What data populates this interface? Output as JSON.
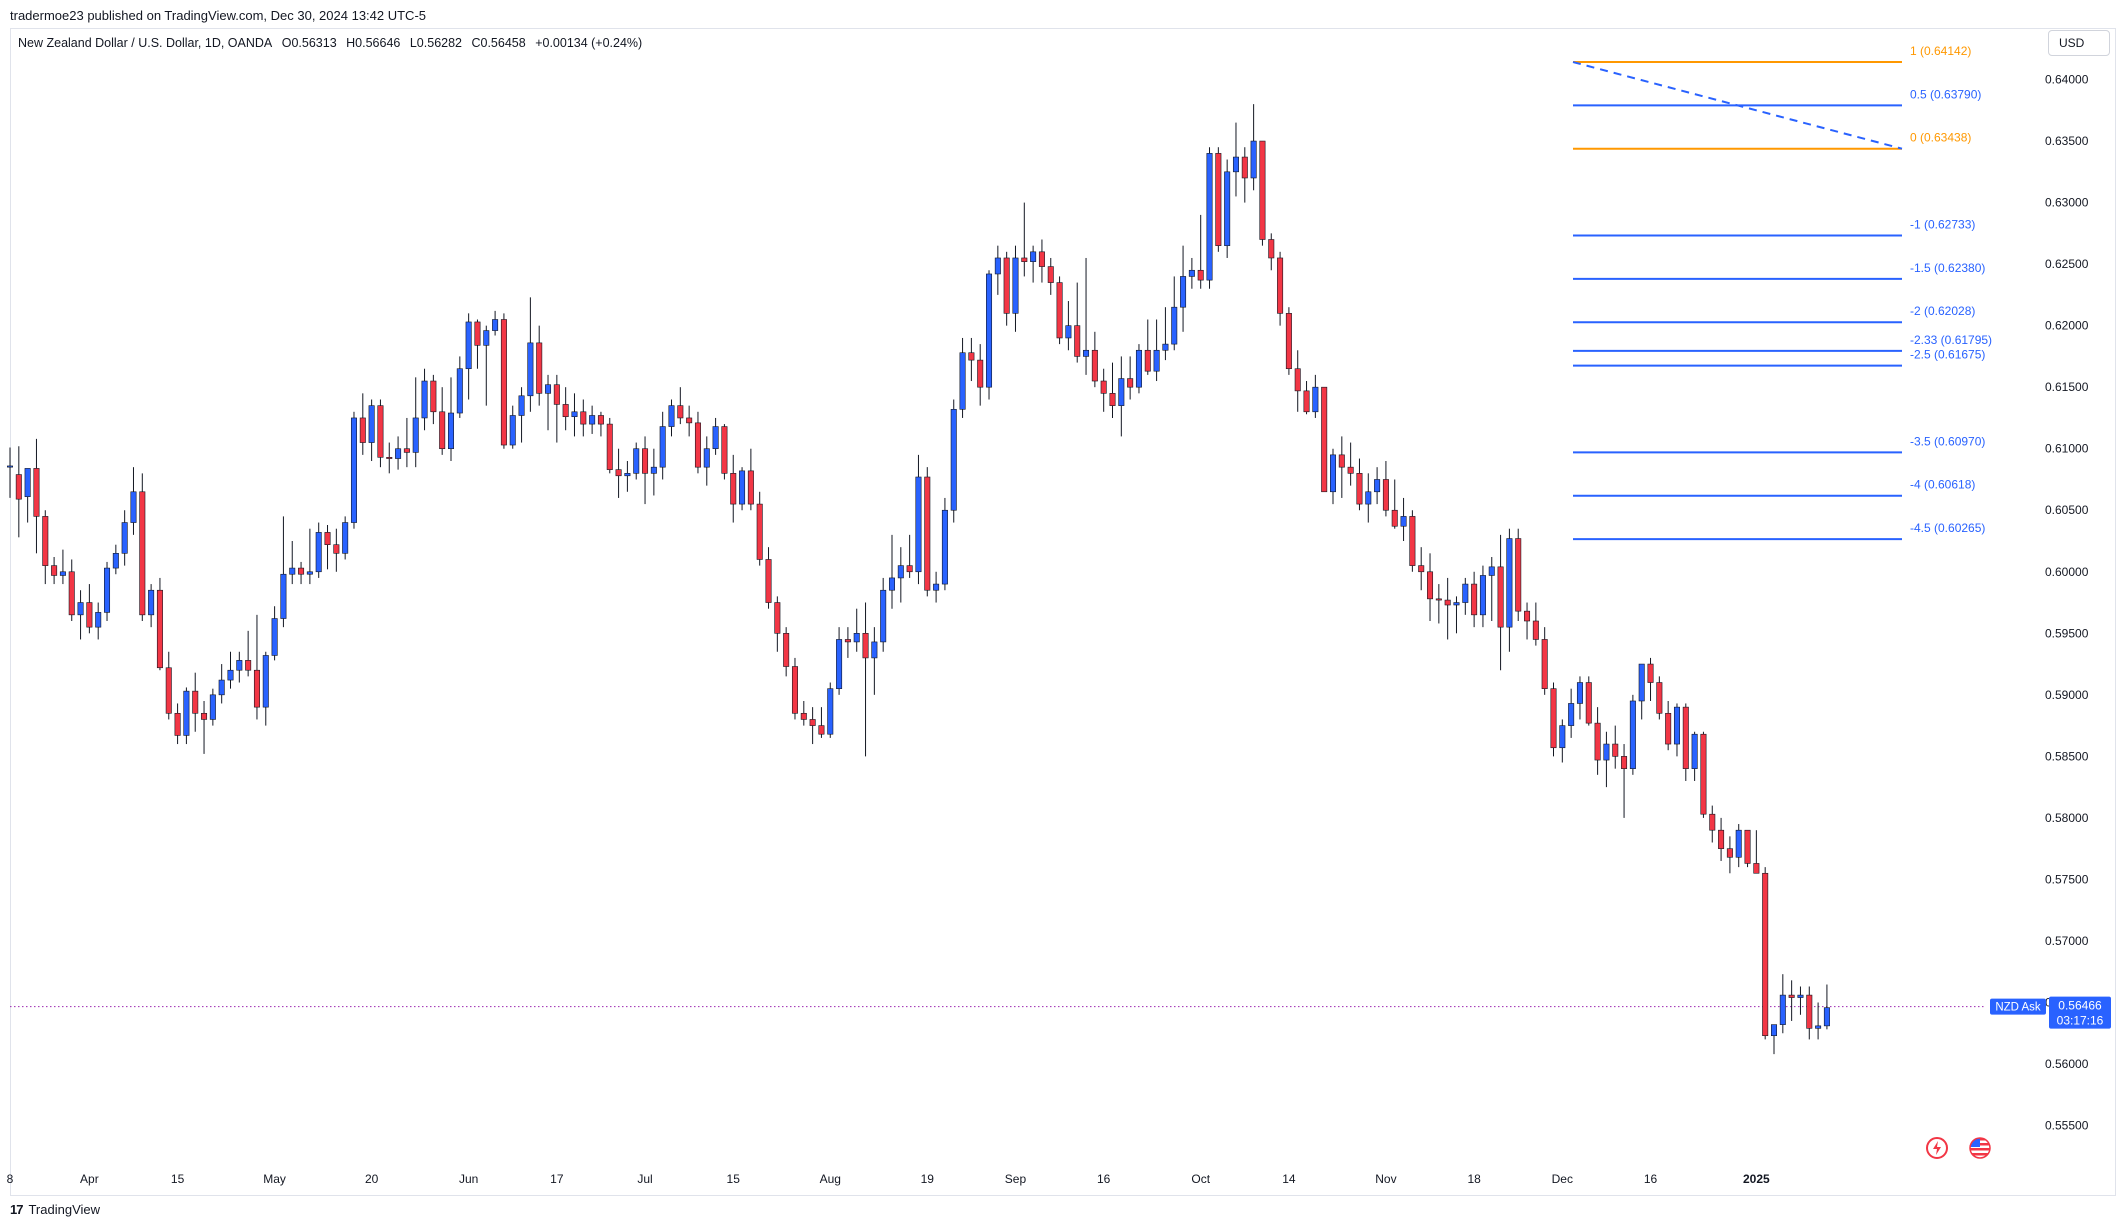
{
  "publish_line": "tradermoe23 published on TradingView.com, Dec 30, 2024 13:42 UTC-5",
  "symbol": {
    "name": "New Zealand Dollar / U.S. Dollar, 1D, OANDA",
    "open": "O0.56313",
    "high": "H0.56646",
    "low": "L0.56282",
    "close": "C0.56458",
    "change": "+0.00134 (+0.24%)"
  },
  "currency_button": "USD",
  "footer": {
    "brand": "TradingView",
    "logo_text": "17"
  },
  "price_label": {
    "name": "NZD Ask",
    "price": "0.56466",
    "countdown": "03:17:16"
  },
  "colors": {
    "up": "#2962ff",
    "down": "#f23645",
    "fib_orange": "#ff9800",
    "fib_blue": "#2962ff",
    "axis_text": "#131722"
  },
  "icons": [
    "lightning-icon",
    "us-flag-icon"
  ],
  "chart_data": {
    "type": "candlestick",
    "interval": "1D",
    "y_axis_side": "right",
    "ylim": [
      0.5522,
      0.645
    ],
    "y_ticks": [
      "0.64000",
      "0.63500",
      "0.63000",
      "0.62500",
      "0.62000",
      "0.61500",
      "0.61000",
      "0.60500",
      "0.60000",
      "0.59500",
      "0.59000",
      "0.58500",
      "0.58000",
      "0.57500",
      "0.57000",
      "0.56500",
      "0.56000",
      "0.55500"
    ],
    "x_tick_labels": [
      "8",
      "Apr",
      "15",
      "May",
      "20",
      "Jun",
      "17",
      "Jul",
      "15",
      "Aug",
      "19",
      "Sep",
      "16",
      "Oct",
      "14",
      "Nov",
      "18",
      "Dec",
      "16",
      "2025"
    ],
    "x_tick_bars": [
      0,
      9,
      19,
      30,
      41,
      52,
      62,
      72,
      82,
      93,
      104,
      114,
      124,
      135,
      145,
      156,
      166,
      176,
      186,
      198
    ],
    "candles": [
      [
        0.6086,
        0.6101,
        0.606,
        0.6086
      ],
      [
        0.6079,
        0.6102,
        0.6028,
        0.6059
      ],
      [
        0.6061,
        0.6083,
        0.604,
        0.6084
      ],
      [
        0.6084,
        0.6108,
        0.6015,
        0.6045
      ],
      [
        0.6045,
        0.605,
        0.599,
        0.6005
      ],
      [
        0.6005,
        0.6012,
        0.599,
        0.5997
      ],
      [
        0.5997,
        0.6018,
        0.599,
        0.6
      ],
      [
        0.6,
        0.601,
        0.596,
        0.5965
      ],
      [
        0.5965,
        0.5985,
        0.5945,
        0.5975
      ],
      [
        0.5975,
        0.599,
        0.595,
        0.5955
      ],
      [
        0.5955,
        0.5975,
        0.5945,
        0.5967
      ],
      [
        0.5967,
        0.6008,
        0.596,
        0.6003
      ],
      [
        0.6003,
        0.6022,
        0.5998,
        0.6015
      ],
      [
        0.6015,
        0.605,
        0.6005,
        0.604
      ],
      [
        0.604,
        0.6085,
        0.603,
        0.6065
      ],
      [
        0.6065,
        0.608,
        0.596,
        0.5965
      ],
      [
        0.5965,
        0.599,
        0.5955,
        0.5985
      ],
      [
        0.5985,
        0.5995,
        0.592,
        0.5922
      ],
      [
        0.5922,
        0.5935,
        0.588,
        0.5885
      ],
      [
        0.5885,
        0.5893,
        0.586,
        0.5867
      ],
      [
        0.5867,
        0.5906,
        0.586,
        0.5903
      ],
      [
        0.5903,
        0.5918,
        0.587,
        0.5885
      ],
      [
        0.5885,
        0.5895,
        0.5852,
        0.588
      ],
      [
        0.588,
        0.5905,
        0.5875,
        0.59
      ],
      [
        0.59,
        0.5925,
        0.5893,
        0.5912
      ],
      [
        0.5912,
        0.5935,
        0.5905,
        0.592
      ],
      [
        0.592,
        0.5935,
        0.591,
        0.5928
      ],
      [
        0.5928,
        0.5952,
        0.5915,
        0.592
      ],
      [
        0.592,
        0.5965,
        0.588,
        0.589
      ],
      [
        0.589,
        0.5935,
        0.5875,
        0.5932
      ],
      [
        0.5932,
        0.5972,
        0.5928,
        0.5962
      ],
      [
        0.5962,
        0.6045,
        0.5955,
        0.5998
      ],
      [
        0.5998,
        0.6025,
        0.599,
        0.6003
      ],
      [
        0.6003,
        0.6008,
        0.599,
        0.5998
      ],
      [
        0.5998,
        0.6035,
        0.599,
        0.6
      ],
      [
        0.6,
        0.604,
        0.5995,
        0.6032
      ],
      [
        0.6032,
        0.6038,
        0.6002,
        0.6022
      ],
      [
        0.6022,
        0.6035,
        0.6,
        0.6015
      ],
      [
        0.6015,
        0.6045,
        0.601,
        0.604
      ],
      [
        0.604,
        0.613,
        0.6035,
        0.6125
      ],
      [
        0.6125,
        0.6145,
        0.6095,
        0.6105
      ],
      [
        0.6105,
        0.614,
        0.609,
        0.6135
      ],
      [
        0.6135,
        0.614,
        0.6085,
        0.6093
      ],
      [
        0.6093,
        0.6105,
        0.608,
        0.6092
      ],
      [
        0.6092,
        0.611,
        0.6083,
        0.61
      ],
      [
        0.61,
        0.6125,
        0.6085,
        0.6097
      ],
      [
        0.6097,
        0.6158,
        0.6085,
        0.6125
      ],
      [
        0.6125,
        0.6165,
        0.6115,
        0.6155
      ],
      [
        0.6155,
        0.616,
        0.612,
        0.613
      ],
      [
        0.613,
        0.615,
        0.6095,
        0.61
      ],
      [
        0.61,
        0.6158,
        0.609,
        0.6129
      ],
      [
        0.6129,
        0.6175,
        0.6125,
        0.6165
      ],
      [
        0.6165,
        0.621,
        0.614,
        0.6203
      ],
      [
        0.6203,
        0.6205,
        0.6165,
        0.6184
      ],
      [
        0.6184,
        0.62,
        0.6135,
        0.6196
      ],
      [
        0.6196,
        0.6212,
        0.6192,
        0.6205
      ],
      [
        0.6205,
        0.621,
        0.61,
        0.6103
      ],
      [
        0.6103,
        0.6135,
        0.61,
        0.6127
      ],
      [
        0.6127,
        0.615,
        0.6105,
        0.6143
      ],
      [
        0.6143,
        0.6223,
        0.613,
        0.6186
      ],
      [
        0.6186,
        0.62,
        0.6135,
        0.6145
      ],
      [
        0.6145,
        0.616,
        0.6115,
        0.6152
      ],
      [
        0.6152,
        0.616,
        0.6105,
        0.6136
      ],
      [
        0.6136,
        0.615,
        0.6115,
        0.6126
      ],
      [
        0.6126,
        0.6145,
        0.611,
        0.613
      ],
      [
        0.613,
        0.614,
        0.611,
        0.612
      ],
      [
        0.612,
        0.6135,
        0.6112,
        0.6127
      ],
      [
        0.6127,
        0.613,
        0.611,
        0.612
      ],
      [
        0.612,
        0.6125,
        0.608,
        0.6083
      ],
      [
        0.6083,
        0.61,
        0.606,
        0.6078
      ],
      [
        0.6078,
        0.609,
        0.6065,
        0.608
      ],
      [
        0.608,
        0.6105,
        0.6075,
        0.61
      ],
      [
        0.61,
        0.611,
        0.6055,
        0.608
      ],
      [
        0.608,
        0.61,
        0.6062,
        0.6085
      ],
      [
        0.6085,
        0.613,
        0.6075,
        0.6118
      ],
      [
        0.6118,
        0.614,
        0.611,
        0.6135
      ],
      [
        0.6135,
        0.615,
        0.612,
        0.6125
      ],
      [
        0.6125,
        0.6135,
        0.611,
        0.6121
      ],
      [
        0.6121,
        0.613,
        0.608,
        0.6085
      ],
      [
        0.6085,
        0.611,
        0.607,
        0.61
      ],
      [
        0.61,
        0.6125,
        0.6095,
        0.6118
      ],
      [
        0.6118,
        0.612,
        0.6075,
        0.608
      ],
      [
        0.608,
        0.6095,
        0.604,
        0.6055
      ],
      [
        0.6055,
        0.6085,
        0.605,
        0.6082
      ],
      [
        0.6082,
        0.61,
        0.605,
        0.6055
      ],
      [
        0.6055,
        0.6065,
        0.6005,
        0.601
      ],
      [
        0.601,
        0.602,
        0.597,
        0.5975
      ],
      [
        0.5975,
        0.598,
        0.5935,
        0.595
      ],
      [
        0.595,
        0.5955,
        0.5915,
        0.5923
      ],
      [
        0.5923,
        0.593,
        0.588,
        0.5885
      ],
      [
        0.5885,
        0.5895,
        0.5875,
        0.588
      ],
      [
        0.588,
        0.589,
        0.586,
        0.5875
      ],
      [
        0.5875,
        0.589,
        0.5865,
        0.5868
      ],
      [
        0.5868,
        0.591,
        0.5865,
        0.5905
      ],
      [
        0.5905,
        0.5955,
        0.59,
        0.5945
      ],
      [
        0.5945,
        0.5955,
        0.593,
        0.5943
      ],
      [
        0.5943,
        0.597,
        0.5935,
        0.595
      ],
      [
        0.595,
        0.5975,
        0.585,
        0.593
      ],
      [
        0.593,
        0.5955,
        0.59,
        0.5943
      ],
      [
        0.5943,
        0.5995,
        0.5935,
        0.5985
      ],
      [
        0.5985,
        0.603,
        0.597,
        0.5995
      ],
      [
        0.5995,
        0.602,
        0.5975,
        0.6005
      ],
      [
        0.6005,
        0.603,
        0.5995,
        0.6
      ],
      [
        0.6,
        0.6095,
        0.599,
        0.6077
      ],
      [
        0.6077,
        0.6085,
        0.598,
        0.5985
      ],
      [
        0.5985,
        0.6,
        0.5975,
        0.599
      ],
      [
        0.599,
        0.606,
        0.5985,
        0.605
      ],
      [
        0.605,
        0.614,
        0.604,
        0.6132
      ],
      [
        0.6132,
        0.619,
        0.6125,
        0.6178
      ],
      [
        0.6178,
        0.619,
        0.6155,
        0.6172
      ],
      [
        0.6172,
        0.6185,
        0.6135,
        0.615
      ],
      [
        0.615,
        0.6245,
        0.614,
        0.6242
      ],
      [
        0.6242,
        0.6265,
        0.6225,
        0.6255
      ],
      [
        0.6255,
        0.626,
        0.62,
        0.621
      ],
      [
        0.621,
        0.6265,
        0.6195,
        0.6255
      ],
      [
        0.6255,
        0.63,
        0.624,
        0.6252
      ],
      [
        0.6252,
        0.6265,
        0.6235,
        0.626
      ],
      [
        0.626,
        0.627,
        0.6235,
        0.6248
      ],
      [
        0.6248,
        0.6255,
        0.6225,
        0.6235
      ],
      [
        0.6235,
        0.624,
        0.6185,
        0.619
      ],
      [
        0.619,
        0.622,
        0.618,
        0.62
      ],
      [
        0.62,
        0.6235,
        0.617,
        0.6175
      ],
      [
        0.6175,
        0.6255,
        0.616,
        0.618
      ],
      [
        0.618,
        0.6195,
        0.615,
        0.6155
      ],
      [
        0.6155,
        0.6165,
        0.613,
        0.6145
      ],
      [
        0.6145,
        0.617,
        0.6125,
        0.6135
      ],
      [
        0.6135,
        0.6175,
        0.611,
        0.6157
      ],
      [
        0.6157,
        0.6175,
        0.614,
        0.615
      ],
      [
        0.615,
        0.6185,
        0.6145,
        0.618
      ],
      [
        0.618,
        0.6205,
        0.616,
        0.6163
      ],
      [
        0.6163,
        0.6205,
        0.6155,
        0.618
      ],
      [
        0.618,
        0.6215,
        0.6172,
        0.6185
      ],
      [
        0.6185,
        0.624,
        0.618,
        0.6215
      ],
      [
        0.6215,
        0.6265,
        0.6195,
        0.624
      ],
      [
        0.624,
        0.6255,
        0.623,
        0.6245
      ],
      [
        0.6245,
        0.629,
        0.623,
        0.6237
      ],
      [
        0.6237,
        0.6345,
        0.623,
        0.634
      ],
      [
        0.634,
        0.6345,
        0.626,
        0.6265
      ],
      [
        0.6265,
        0.6335,
        0.6255,
        0.6325
      ],
      [
        0.6325,
        0.6365,
        0.6305,
        0.6337
      ],
      [
        0.6337,
        0.6345,
        0.63,
        0.632
      ],
      [
        0.632,
        0.638,
        0.631,
        0.635
      ],
      [
        0.635,
        0.635,
        0.6265,
        0.627
      ],
      [
        0.627,
        0.6275,
        0.6245,
        0.6255
      ],
      [
        0.6255,
        0.626,
        0.62,
        0.621
      ],
      [
        0.621,
        0.6215,
        0.616,
        0.6165
      ],
      [
        0.6165,
        0.618,
        0.613,
        0.6147
      ],
      [
        0.6147,
        0.6155,
        0.6128,
        0.613
      ],
      [
        0.613,
        0.616,
        0.6125,
        0.615
      ],
      [
        0.615,
        0.615,
        0.6065,
        0.6065
      ],
      [
        0.6065,
        0.61,
        0.6055,
        0.6095
      ],
      [
        0.6095,
        0.611,
        0.606,
        0.6085
      ],
      [
        0.6085,
        0.6105,
        0.607,
        0.608
      ],
      [
        0.608,
        0.6092,
        0.605,
        0.6055
      ],
      [
        0.6055,
        0.608,
        0.604,
        0.6065
      ],
      [
        0.6065,
        0.6085,
        0.6055,
        0.6075
      ],
      [
        0.6075,
        0.609,
        0.6045,
        0.605
      ],
      [
        0.605,
        0.6075,
        0.6035,
        0.6037
      ],
      [
        0.6037,
        0.606,
        0.6025,
        0.6045
      ],
      [
        0.6045,
        0.605,
        0.6,
        0.6005
      ],
      [
        0.6005,
        0.602,
        0.5985,
        0.6
      ],
      [
        0.6,
        0.6015,
        0.596,
        0.5978
      ],
      [
        0.5978,
        0.599,
        0.5958,
        0.5977
      ],
      [
        0.5977,
        0.5995,
        0.5945,
        0.5973
      ],
      [
        0.5973,
        0.598,
        0.595,
        0.5975
      ],
      [
        0.5975,
        0.5995,
        0.5965,
        0.599
      ],
      [
        0.599,
        0.6,
        0.5955,
        0.5965
      ],
      [
        0.5965,
        0.6005,
        0.5955,
        0.5997
      ],
      [
        0.5997,
        0.6012,
        0.596,
        0.6004
      ],
      [
        0.6004,
        0.603,
        0.592,
        0.5955
      ],
      [
        0.5955,
        0.6035,
        0.5935,
        0.6027
      ],
      [
        0.6027,
        0.6035,
        0.596,
        0.5968
      ],
      [
        0.5968,
        0.5975,
        0.5945,
        0.596
      ],
      [
        0.596,
        0.5975,
        0.594,
        0.5945
      ],
      [
        0.5945,
        0.5955,
        0.59,
        0.5905
      ],
      [
        0.5905,
        0.591,
        0.585,
        0.5857
      ],
      [
        0.5857,
        0.588,
        0.5845,
        0.5875
      ],
      [
        0.5875,
        0.5905,
        0.5865,
        0.5893
      ],
      [
        0.5893,
        0.5915,
        0.588,
        0.591
      ],
      [
        0.591,
        0.5915,
        0.5875,
        0.5877
      ],
      [
        0.5877,
        0.589,
        0.5835,
        0.5847
      ],
      [
        0.5847,
        0.587,
        0.5825,
        0.586
      ],
      [
        0.586,
        0.5875,
        0.584,
        0.585
      ],
      [
        0.585,
        0.586,
        0.58,
        0.584
      ],
      [
        0.584,
        0.59,
        0.5835,
        0.5895
      ],
      [
        0.5895,
        0.592,
        0.588,
        0.5925
      ],
      [
        0.5925,
        0.593,
        0.5895,
        0.591
      ],
      [
        0.591,
        0.5915,
        0.588,
        0.5885
      ],
      [
        0.5885,
        0.5895,
        0.5855,
        0.586
      ],
      [
        0.586,
        0.5893,
        0.585,
        0.589
      ],
      [
        0.589,
        0.5893,
        0.583,
        0.584
      ],
      [
        0.584,
        0.587,
        0.583,
        0.5868
      ],
      [
        0.5868,
        0.587,
        0.58,
        0.5803
      ],
      [
        0.5803,
        0.581,
        0.578,
        0.579
      ],
      [
        0.579,
        0.58,
        0.5765,
        0.5775
      ],
      [
        0.5775,
        0.5785,
        0.5755,
        0.5768
      ],
      [
        0.5768,
        0.5795,
        0.576,
        0.579
      ],
      [
        0.579,
        0.579,
        0.576,
        0.5763
      ],
      [
        0.5763,
        0.579,
        0.5757,
        0.5755
      ],
      [
        0.5755,
        0.576,
        0.562,
        0.5623
      ],
      [
        0.5623,
        0.563,
        0.5608,
        0.5632
      ],
      [
        0.5632,
        0.5673,
        0.5625,
        0.5656
      ],
      [
        0.5656,
        0.5668,
        0.5635,
        0.5654
      ],
      [
        0.5654,
        0.5663,
        0.564,
        0.5656
      ],
      [
        0.5656,
        0.5663,
        0.562,
        0.5629
      ],
      [
        0.5629,
        0.565,
        0.562,
        0.5631
      ],
      [
        0.5631,
        0.56646,
        0.56282,
        0.56458
      ]
    ],
    "fib_levels": [
      {
        "label": "1 (0.64142)",
        "value": 0.64142,
        "color": "#ff9800"
      },
      {
        "label": "0.5 (0.63790)",
        "value": 0.6379,
        "color": "#2962ff"
      },
      {
        "label": "0 (0.63438)",
        "value": 0.63438,
        "color": "#ff9800"
      },
      {
        "label": "-1 (0.62733)",
        "value": 0.62733,
        "color": "#2962ff"
      },
      {
        "label": "-1.5 (0.62380)",
        "value": 0.6238,
        "color": "#2962ff"
      },
      {
        "label": "-2 (0.62028)",
        "value": 0.62028,
        "color": "#2962ff"
      },
      {
        "label": "-2.33 (0.61795)",
        "value": 0.61795,
        "color": "#2962ff"
      },
      {
        "label": "-2.5 (0.61675)",
        "value": 0.61675,
        "color": "#2962ff"
      },
      {
        "label": "-3.5 (0.60970)",
        "value": 0.6097,
        "color": "#2962ff"
      },
      {
        "label": "-4 (0.60618)",
        "value": 0.60618,
        "color": "#2962ff"
      },
      {
        "label": "-4.5 (0.60265)",
        "value": 0.60265,
        "color": "#2962ff"
      }
    ],
    "current_price": 0.56466
  }
}
